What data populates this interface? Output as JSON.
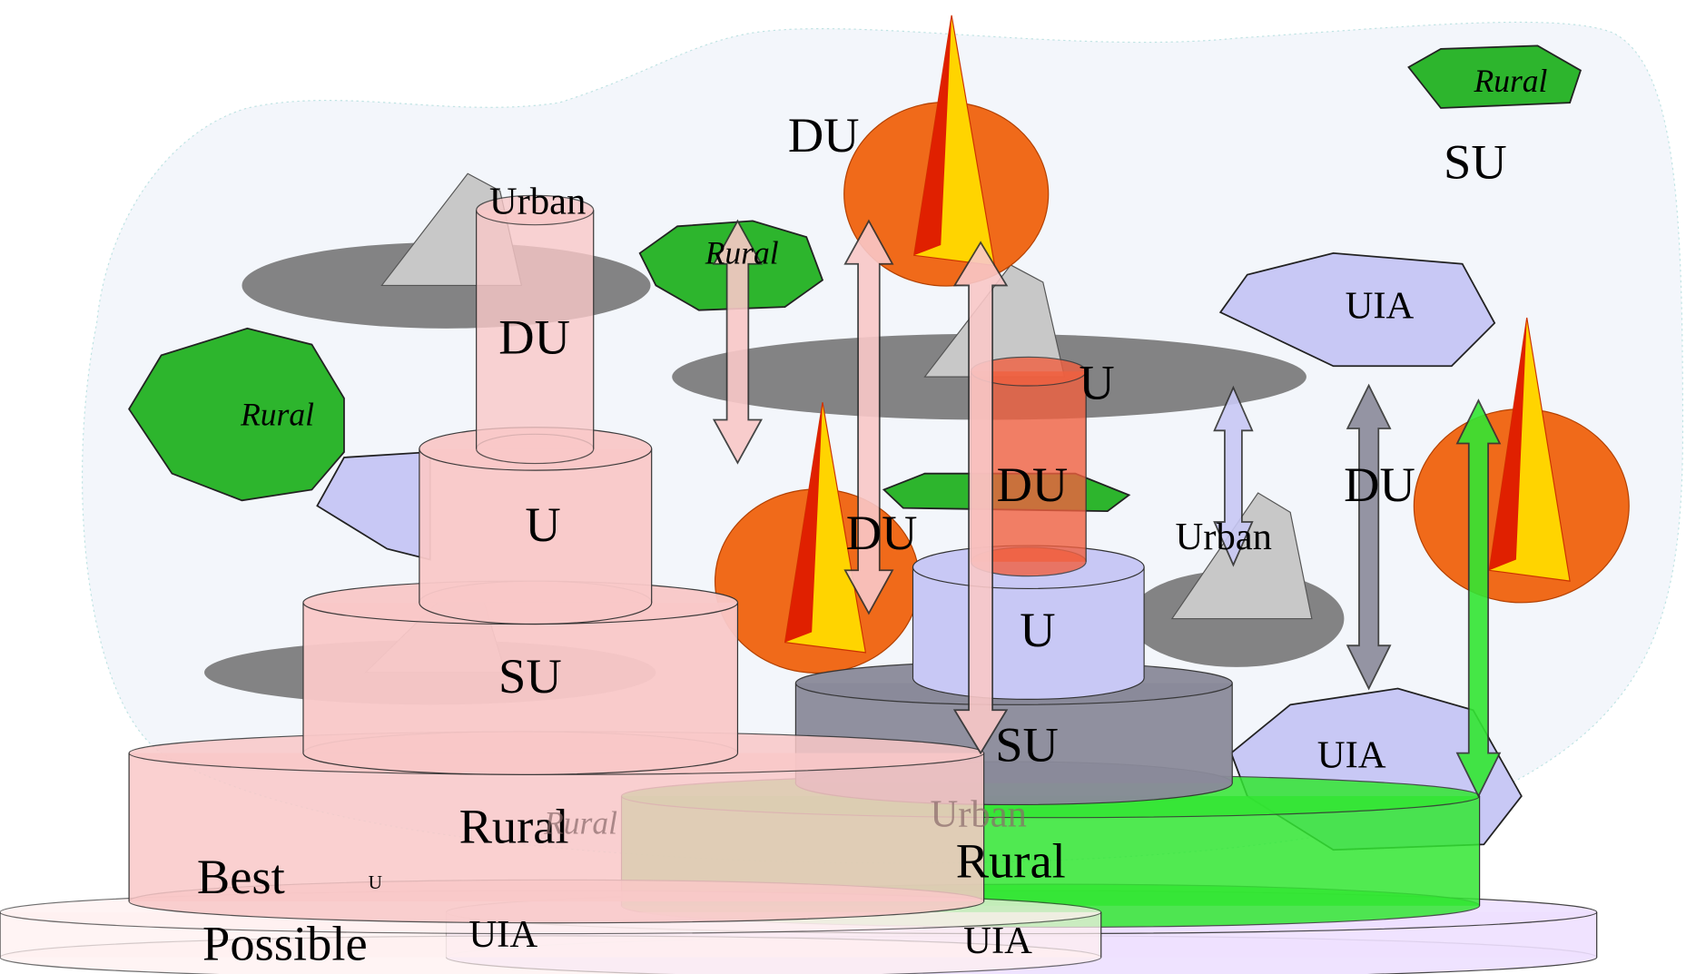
{
  "labels": [
    {
      "text": "Rural"
    },
    {
      "text": "SU"
    },
    {
      "text": "DU"
    },
    {
      "text": "Rural"
    },
    {
      "text": "Rural"
    },
    {
      "text": "Urban"
    },
    {
      "text": "DU"
    },
    {
      "text": "U"
    },
    {
      "text": "SU"
    },
    {
      "text": "Rural"
    },
    {
      "text": "Best"
    },
    {
      "text": "Possible"
    },
    {
      "text": "U"
    },
    {
      "text": "UIA"
    },
    {
      "text": "UIA"
    },
    {
      "text": "UIA"
    },
    {
      "text": "U"
    },
    {
      "text": "DU"
    },
    {
      "text": "U"
    },
    {
      "text": "SU"
    },
    {
      "text": "UIA"
    },
    {
      "text": "Rural"
    },
    {
      "text": "Urban"
    },
    {
      "text": "Urban"
    },
    {
      "text": "DU"
    },
    {
      "text": "DU"
    },
    {
      "text": "Rural"
    }
  ]
}
